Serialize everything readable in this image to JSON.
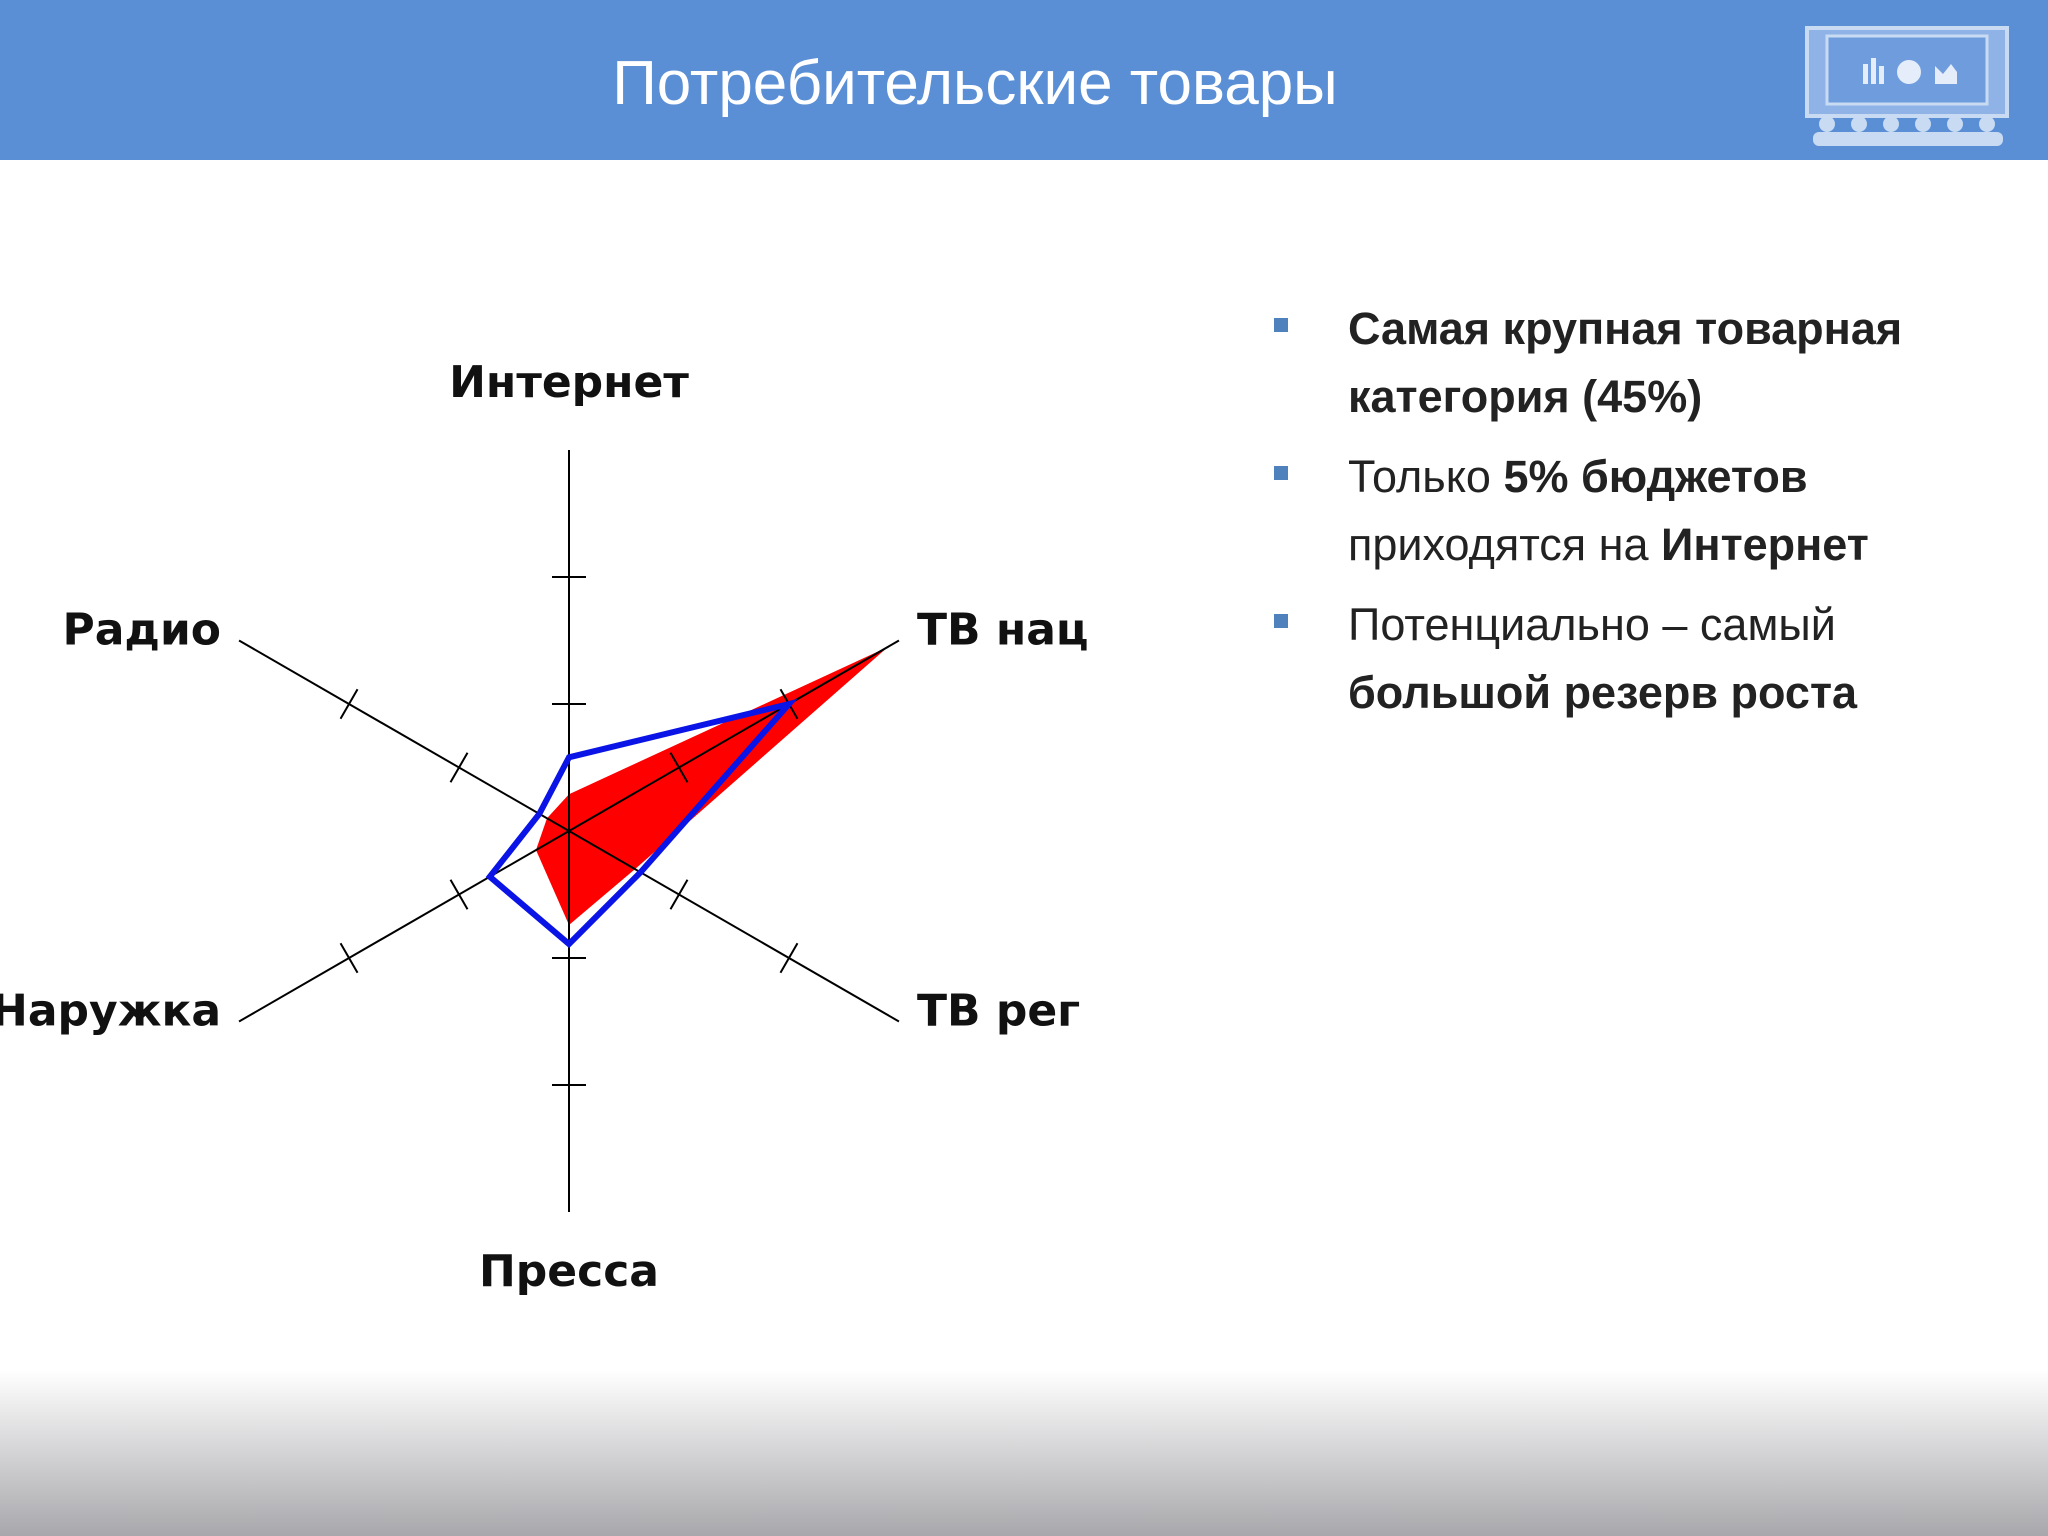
{
  "header": {
    "title": "Потребительские товары"
  },
  "chart_data": {
    "type": "radar",
    "categories": [
      "Интернет",
      "ТВ нац",
      "ТВ рег",
      "Пресса",
      "Наружка",
      "Радио"
    ],
    "series": [
      {
        "color": "#ff0000",
        "fill": true,
        "values": [
          0.29,
          2.9,
          0.6,
          0.74,
          0.3,
          0.2
        ]
      },
      {
        "color": "#0a14e6",
        "fill": false,
        "values": [
          0.58,
          2.0,
          0.65,
          0.89,
          0.72,
          0.27
        ]
      }
    ],
    "rlim": [
      0,
      3
    ],
    "rticks": [
      1,
      2
    ]
  },
  "bullets": [
    [
      {
        "text": "Самая крупная товарная категория (45%)",
        "bold": true
      }
    ],
    [
      {
        "text": "Только ",
        "bold": false
      },
      {
        "text": "5% бюджетов",
        "bold": true
      },
      {
        "text": " приходятся на ",
        "bold": false
      },
      {
        "text": "Интернет",
        "bold": true
      }
    ],
    [
      {
        "text": "Потенциально – самый ",
        "bold": false
      },
      {
        "text": "большой резерв роста",
        "bold": true
      }
    ]
  ]
}
